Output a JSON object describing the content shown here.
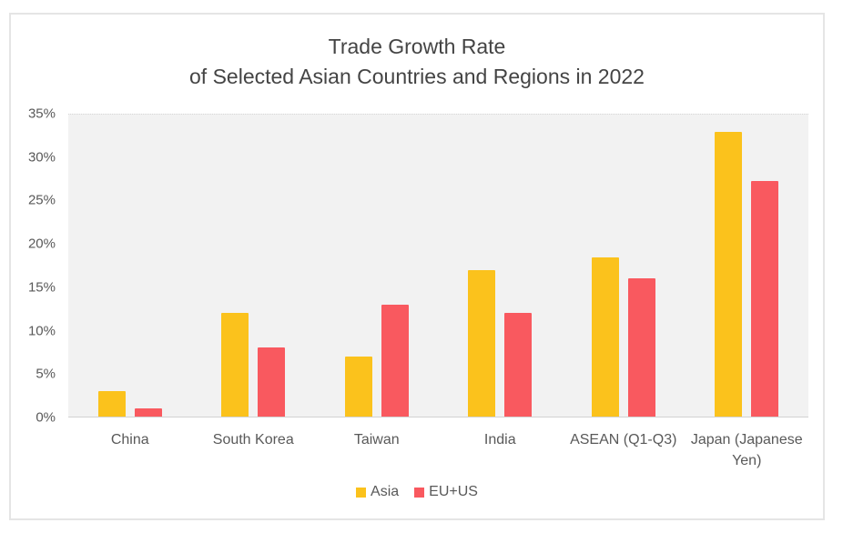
{
  "title": {
    "line1": "Trade Growth Rate",
    "line2": "of Selected Asian Countries and Regions in 2022"
  },
  "colors": {
    "asia_series": "#FBC21C",
    "eu_us_series": "#F9595F",
    "plot_background": "#F2F2F2",
    "axis_line": "#D2D2D2",
    "tick_text": "#595959",
    "title_text": "#444444",
    "card_border": "#E5E5E5"
  },
  "chart_data": {
    "type": "bar",
    "title": "Trade Growth Rate of Selected Asian Countries and Regions in 2022",
    "categories": [
      "China",
      "South Korea",
      "Taiwan",
      "India",
      "ASEAN (Q1-Q3)",
      "Japan (Japanese Yen)"
    ],
    "series": [
      {
        "name": "Asia",
        "color": "#FBC21C",
        "values": [
          3,
          12,
          7,
          17,
          18.5,
          33
        ]
      },
      {
        "name": "EU+US",
        "color": "#F9595F",
        "values": [
          1,
          8,
          13,
          12,
          16,
          27.3
        ]
      }
    ],
    "xlabel": "",
    "ylabel": "",
    "ylim": [
      0,
      35
    ],
    "ytick_step": 5,
    "ytick_labels": [
      "0%",
      "5%",
      "10%",
      "15%",
      "20%",
      "25%",
      "30%",
      "35%"
    ],
    "grid": false,
    "legend_position": "bottom-center",
    "plot_area_background": "#F2F2F2"
  }
}
